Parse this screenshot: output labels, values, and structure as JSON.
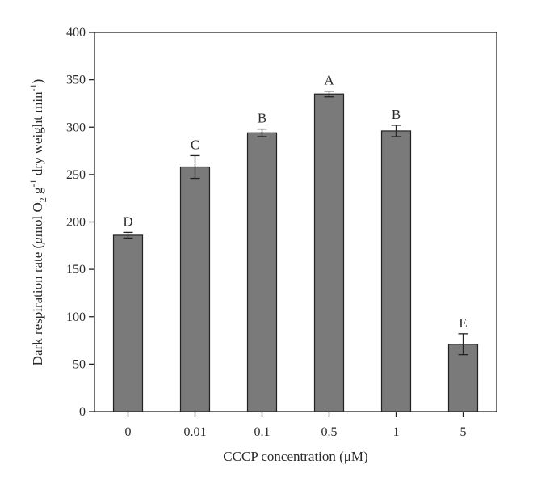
{
  "chart_data": {
    "type": "bar",
    "title": "",
    "xlabel": "CCCP concentration (μM)",
    "ylabel": {
      "prefix": "Dark respiration rate (",
      "mu": "μ",
      "mol": "mol O",
      "sub": "2",
      "g": " g",
      "sup1": "-1",
      "dry": " dry weight min",
      "sup2": "-1",
      "suffix": ")"
    },
    "categories": [
      "0",
      "0.01",
      "0.1",
      "0.5",
      "1",
      "5"
    ],
    "values": [
      186,
      258,
      294,
      335,
      296,
      71
    ],
    "errors": [
      3,
      12,
      4,
      3,
      6,
      11
    ],
    "letters": [
      "D",
      "C",
      "B",
      "A",
      "B",
      "E"
    ],
    "ylim": [
      0,
      400
    ],
    "yticks": [
      "0",
      "50",
      "100",
      "150",
      "200",
      "250",
      "300",
      "350",
      "400"
    ],
    "bar_color": "#7a7a7a",
    "grid": false,
    "legend": "none"
  }
}
